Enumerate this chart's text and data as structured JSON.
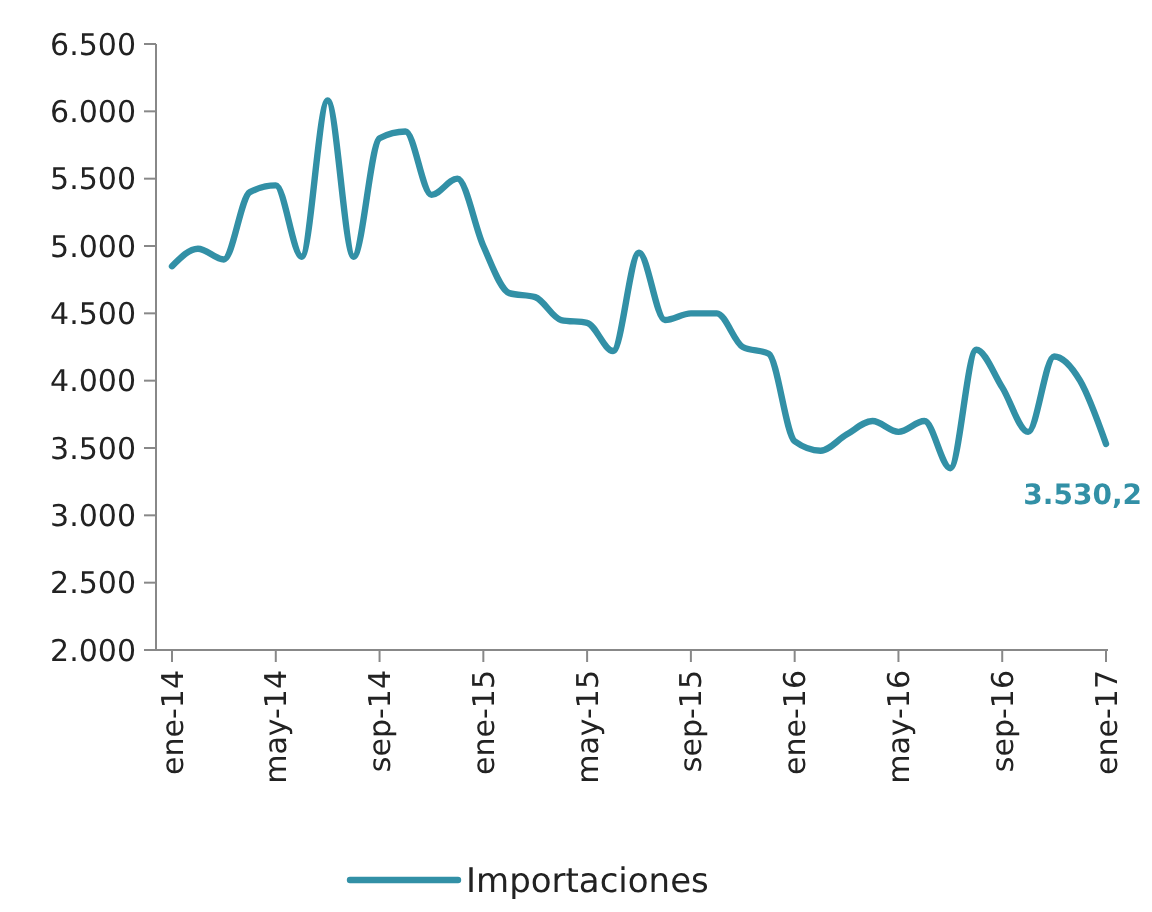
{
  "chart_data": {
    "type": "line",
    "categories": [
      "ene-14",
      null,
      null,
      null,
      "may-14",
      null,
      null,
      null,
      "sep-14",
      null,
      null,
      null,
      "ene-15",
      null,
      null,
      null,
      "may-15",
      null,
      null,
      null,
      "sep-15",
      null,
      null,
      null,
      "ene-16",
      null,
      null,
      null,
      "may-16",
      null,
      null,
      null,
      "sep-16",
      null,
      null,
      null,
      "ene-17"
    ],
    "series": [
      {
        "name": "Importaciones",
        "color": "#3290a6",
        "values": [
          4850,
          4980,
          4900,
          5400,
          5450,
          4920,
          6080,
          4920,
          5800,
          5850,
          5380,
          5500,
          5000,
          4650,
          4620,
          4450,
          4430,
          4220,
          4950,
          4450,
          4500,
          4500,
          4250,
          4200,
          3550,
          3480,
          3600,
          3700,
          3620,
          3700,
          3350,
          4230,
          3950,
          3620,
          4180,
          4000,
          3530.2
        ]
      }
    ],
    "ylim": [
      2000,
      6500
    ],
    "yticks": [
      {
        "value": 2000,
        "label": "2.000"
      },
      {
        "value": 2500,
        "label": "2.500"
      },
      {
        "value": 3000,
        "label": "3.000"
      },
      {
        "value": 3500,
        "label": "3.500"
      },
      {
        "value": 4000,
        "label": "4.000"
      },
      {
        "value": 4500,
        "label": "4.500"
      },
      {
        "value": 5000,
        "label": "5.000"
      },
      {
        "value": 5500,
        "label": "5.500"
      },
      {
        "value": 6000,
        "label": "6.000"
      },
      {
        "value": 6500,
        "label": "6.500"
      }
    ],
    "annotations": [
      {
        "text": "3.530,2",
        "x": "ene-17",
        "y": 3530.2
      }
    ],
    "grid": false,
    "legend": "bottom",
    "marker": "none",
    "line_style": "solid"
  }
}
